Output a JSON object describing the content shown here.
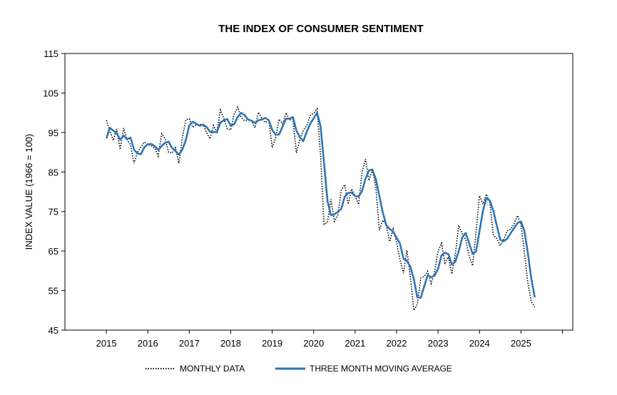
{
  "chart_data": {
    "type": "line",
    "title": "THE INDEX OF CONSUMER SENTIMENT",
    "xlabel": "",
    "ylabel": "INDEX VALUE (1966 = 100)",
    "ylim": [
      45,
      115
    ],
    "yticks": [
      45,
      55,
      65,
      75,
      85,
      95,
      105,
      115
    ],
    "xlim": [
      2014,
      2026.25
    ],
    "xticks": [
      2015,
      2016,
      2017,
      2018,
      2019,
      2020,
      2021,
      2022,
      2023,
      2024,
      2025
    ],
    "grid": false,
    "legend_position": "bottom",
    "colors": {
      "monthly": "#000000",
      "average": "#2e75b6"
    },
    "x_start": 2015.0,
    "x_step_months": 1,
    "series": [
      {
        "name": "MONTHLY DATA",
        "style": "dotted",
        "values": [
          98.1,
          95.4,
          93.0,
          95.9,
          90.7,
          96.1,
          93.1,
          91.9,
          87.2,
          90.0,
          91.3,
          92.6,
          92.0,
          91.7,
          91.0,
          89.0,
          94.7,
          93.5,
          90.0,
          89.8,
          91.2,
          87.2,
          93.8,
          98.2,
          98.5,
          96.3,
          96.9,
          97.0,
          97.1,
          95.0,
          93.4,
          96.8,
          95.1,
          100.7,
          98.5,
          95.9,
          95.7,
          99.7,
          101.4,
          98.8,
          98.0,
          98.2,
          97.9,
          96.2,
          100.1,
          98.6,
          97.5,
          98.3,
          91.2,
          93.8,
          98.4,
          97.2,
          100.0,
          98.2,
          98.4,
          89.8,
          93.2,
          95.5,
          96.8,
          99.3,
          99.8,
          101.0,
          89.1,
          71.8,
          72.3,
          78.1,
          72.5,
          74.1,
          80.4,
          81.8,
          76.9,
          80.7,
          79.0,
          76.8,
          84.9,
          88.3,
          82.9,
          85.5,
          81.2,
          70.3,
          72.8,
          71.7,
          67.4,
          70.6,
          67.2,
          62.8,
          59.4,
          65.2,
          58.4,
          50.0,
          51.5,
          58.2,
          58.6,
          59.9,
          56.8,
          59.7,
          64.9,
          67.0,
          62.0,
          63.5,
          59.2,
          64.2,
          71.5,
          69.4,
          67.9,
          63.8,
          61.3,
          69.7,
          79.0,
          76.9,
          79.4,
          77.2,
          69.1,
          68.2,
          66.4,
          67.9,
          70.1,
          70.5,
          71.8,
          74.0,
          71.7,
          64.7,
          57.0,
          52.2,
          50.8
        ]
      },
      {
        "name": "THREE MONTH MOVING AVERAGE",
        "style": "solid",
        "values": [
          93.5,
          96.2,
          95.5,
          94.8,
          93.2,
          94.2,
          93.3,
          93.7,
          90.7,
          89.7,
          89.5,
          91.3,
          92.0,
          92.1,
          91.6,
          90.6,
          91.6,
          92.4,
          92.7,
          91.1,
          90.3,
          89.4,
          90.7,
          93.1,
          96.8,
          97.7,
          97.2,
          96.7,
          97.0,
          96.4,
          95.2,
          95.1,
          95.1,
          97.5,
          98.1,
          98.4,
          96.7,
          97.1,
          98.9,
          100.0,
          99.4,
          98.3,
          98.0,
          97.4,
          98.1,
          98.3,
          98.7,
          98.1,
          95.7,
          94.4,
          94.5,
          96.5,
          98.5,
          98.5,
          98.9,
          95.5,
          93.8,
          92.8,
          95.2,
          97.2,
          98.6,
          100.0,
          96.6,
          87.3,
          77.7,
          74.1,
          74.3,
          74.9,
          75.7,
          78.8,
          79.7,
          79.8,
          78.9,
          78.8,
          80.2,
          83.3,
          85.4,
          85.6,
          83.2,
          79.0,
          74.8,
          71.6,
          70.6,
          69.9,
          68.4,
          66.9,
          63.1,
          62.5,
          61.0,
          57.9,
          53.3,
          53.2,
          56.1,
          58.9,
          58.4,
          58.8,
          60.5,
          63.9,
          64.6,
          64.2,
          61.6,
          62.3,
          65.0,
          68.4,
          69.6,
          67.0,
          64.3,
          64.9,
          70.0,
          75.2,
          78.4,
          77.8,
          75.2,
          71.5,
          67.9,
          67.5,
          68.1,
          69.5,
          70.8,
          72.1,
          72.5,
          70.1,
          64.5,
          58.0,
          53.3
        ]
      }
    ]
  }
}
